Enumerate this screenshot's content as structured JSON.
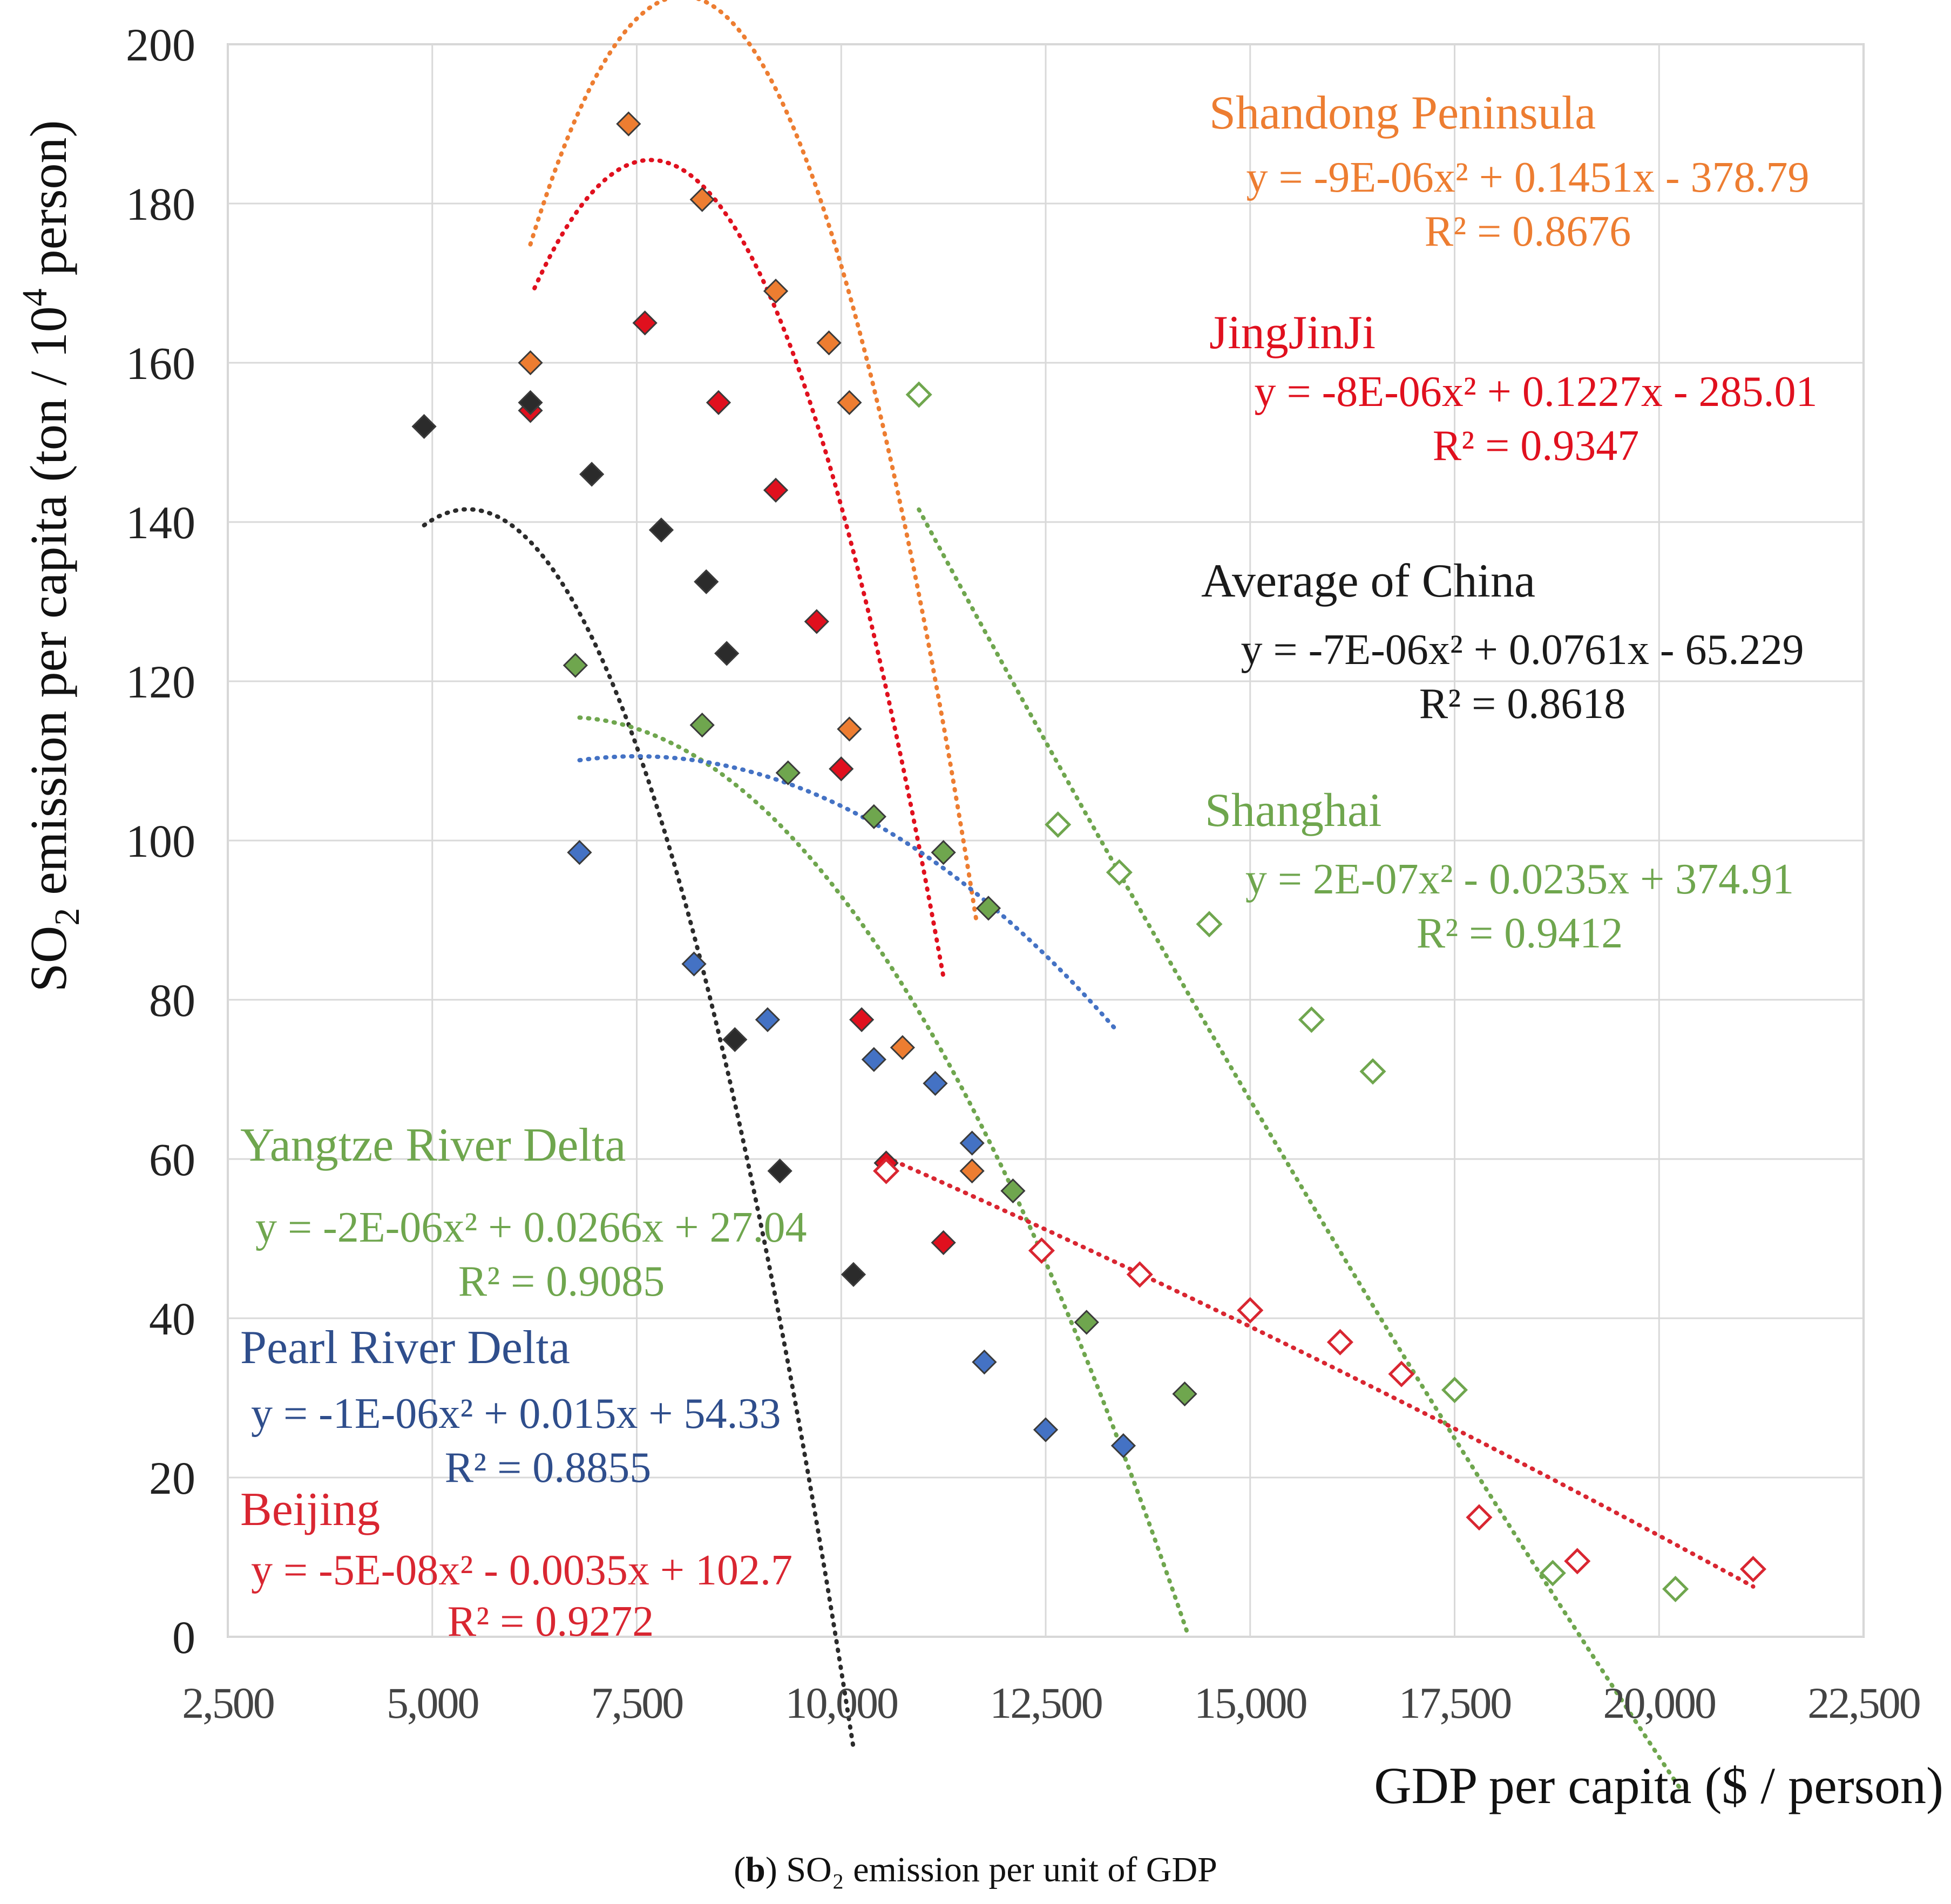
{
  "chart_data": {
    "type": "scatter",
    "title": "",
    "xlabel": "GDP per capita  ($ / person)",
    "ylabel_main": "SO",
    "ylabel_sub": "2",
    "ylabel_rest": " emission per capita (ton / 10",
    "ylabel_sup": "4",
    "ylabel_end": " person)",
    "xlim": [
      2500,
      22500
    ],
    "ylim": [
      0,
      200
    ],
    "x_ticks": [
      2500,
      5000,
      7500,
      10000,
      12500,
      15000,
      17500,
      20000,
      22500
    ],
    "x_tick_labels": [
      "2,500",
      "5,000",
      "7,500",
      "10,000",
      "12,500",
      "15,000",
      "17,500",
      "20,000",
      "22,500"
    ],
    "y_ticks": [
      0,
      20,
      40,
      60,
      80,
      100,
      120,
      140,
      160,
      180,
      200
    ],
    "y_tick_labels": [
      "0",
      "20",
      "40",
      "60",
      "80",
      "100",
      "120",
      "140",
      "160",
      "180",
      "200"
    ],
    "grid": true,
    "series": [
      {
        "name": "Shandong Peninsula",
        "color": "#ED7D31",
        "marker": "diamond-filled",
        "points": [
          [
            6200,
            160
          ],
          [
            7400,
            190
          ],
          [
            8300,
            180.5
          ],
          [
            9200,
            169
          ],
          [
            9850,
            162.5
          ],
          [
            10100,
            155
          ],
          [
            10100,
            114
          ],
          [
            10750,
            74
          ],
          [
            11600,
            58.5
          ]
        ],
        "trend": {
          "a": -9e-06,
          "b": 0.1451,
          "c": -378.79,
          "x_range": [
            6200,
            11650
          ]
        },
        "equation": "y = -9E-06x² + 0.1451x - 378.79",
        "r2": "R² = 0.8676"
      },
      {
        "name": "JingJinJi",
        "color": "#E0101E",
        "marker": "diamond-filled",
        "points": [
          [
            6200,
            154
          ],
          [
            7600,
            165
          ],
          [
            8500,
            155
          ],
          [
            9200,
            144
          ],
          [
            9700,
            127.5
          ],
          [
            10000,
            109
          ],
          [
            10250,
            77.5
          ],
          [
            10550,
            59.5
          ],
          [
            11250,
            49.5
          ]
        ],
        "trend": {
          "a": -8e-06,
          "b": 0.1227,
          "c": -285.01,
          "x_range": [
            6250,
            11250
          ]
        },
        "equation": "y = -8E-06x² + 0.1227x - 285.01",
        "r2": "R² = 0.9347"
      },
      {
        "name": "Average of China",
        "color": "#2B2B2B",
        "marker": "diamond-filled",
        "points": [
          [
            4900,
            152
          ],
          [
            6200,
            155
          ],
          [
            6950,
            146
          ],
          [
            7800,
            139
          ],
          [
            8350,
            132.5
          ],
          [
            8600,
            123.5
          ],
          [
            8700,
            75
          ],
          [
            9250,
            58.5
          ],
          [
            10150,
            45.5
          ]
        ],
        "trend": {
          "a": -7e-06,
          "b": 0.0761,
          "c": -65.229,
          "x_range": [
            4900,
            10150
          ]
        },
        "equation": "y = -7E-06x² + 0.0761x - 65.229",
        "r2": "R² = 0.8618"
      },
      {
        "name": "Shanghai",
        "color": "#6FA64E",
        "marker": "diamond-open",
        "points": [
          [
            10950,
            156
          ],
          [
            12650,
            102
          ],
          [
            13400,
            96
          ],
          [
            14500,
            89.5
          ],
          [
            15750,
            77.5
          ],
          [
            16500,
            71
          ],
          [
            17500,
            31
          ],
          [
            18700,
            8
          ],
          [
            20200,
            6
          ]
        ],
        "trend": {
          "a": 2e-07,
          "b": -0.0235,
          "c": 374.91,
          "x_range": [
            10950,
            20250
          ]
        },
        "equation": "y = 2E-07x² - 0.0235x + 374.91",
        "r2": "R² = 0.9412"
      },
      {
        "name": "Yangtze River Delta",
        "color": "#6FA64E",
        "marker": "diamond-filled",
        "points": [
          [
            6750,
            122
          ],
          [
            8300,
            114.5
          ],
          [
            9350,
            108.5
          ],
          [
            10400,
            103
          ],
          [
            11250,
            98.5
          ],
          [
            11800,
            91.5
          ],
          [
            12100,
            56
          ],
          [
            13000,
            39.5
          ],
          [
            14200,
            30.5
          ]
        ],
        "trend": {
          "a": -2e-06,
          "b": 0.0266,
          "c": 27.04,
          "x_range": [
            6800,
            14250
          ]
        },
        "equation": "y = -2E-06x² + 0.0266x + 27.04",
        "r2": "R² = 0.9085"
      },
      {
        "name": "Pearl River Delta",
        "color": "#4472C4",
        "marker": "diamond-filled",
        "points": [
          [
            6800,
            98.5
          ],
          [
            8200,
            84.5
          ],
          [
            9100,
            77.5
          ],
          [
            10400,
            72.5
          ],
          [
            11150,
            69.5
          ],
          [
            11600,
            62
          ],
          [
            11750,
            34.5
          ],
          [
            12500,
            26
          ],
          [
            13450,
            24
          ]
        ],
        "trend": {
          "a": -1e-06,
          "b": 0.015,
          "c": 54.33,
          "x_range": [
            6800,
            13350
          ]
        },
        "equation": "y = -1E-06x² + 0.015x + 54.33",
        "r2": "R² = 0.8855"
      },
      {
        "name": "Beijing",
        "color": "#D92631",
        "marker": "diamond-open",
        "points": [
          [
            10550,
            58.5
          ],
          [
            12450,
            48.5
          ],
          [
            13650,
            45.5
          ],
          [
            15000,
            41
          ],
          [
            16100,
            37
          ],
          [
            16850,
            33
          ],
          [
            17800,
            15
          ],
          [
            19000,
            9.5
          ],
          [
            21150,
            8.5
          ]
        ],
        "trend": {
          "a": -5e-08,
          "b": -0.0035,
          "c": 102.7,
          "x_range": [
            10550,
            21150
          ]
        },
        "equation": "y = -5E-08x² - 0.0035x + 102.7",
        "r2": "R² = 0.9272"
      }
    ]
  },
  "caption": {
    "open": "(",
    "bold": "b",
    "rest": ") SO₂ emission per unit of GDP"
  }
}
